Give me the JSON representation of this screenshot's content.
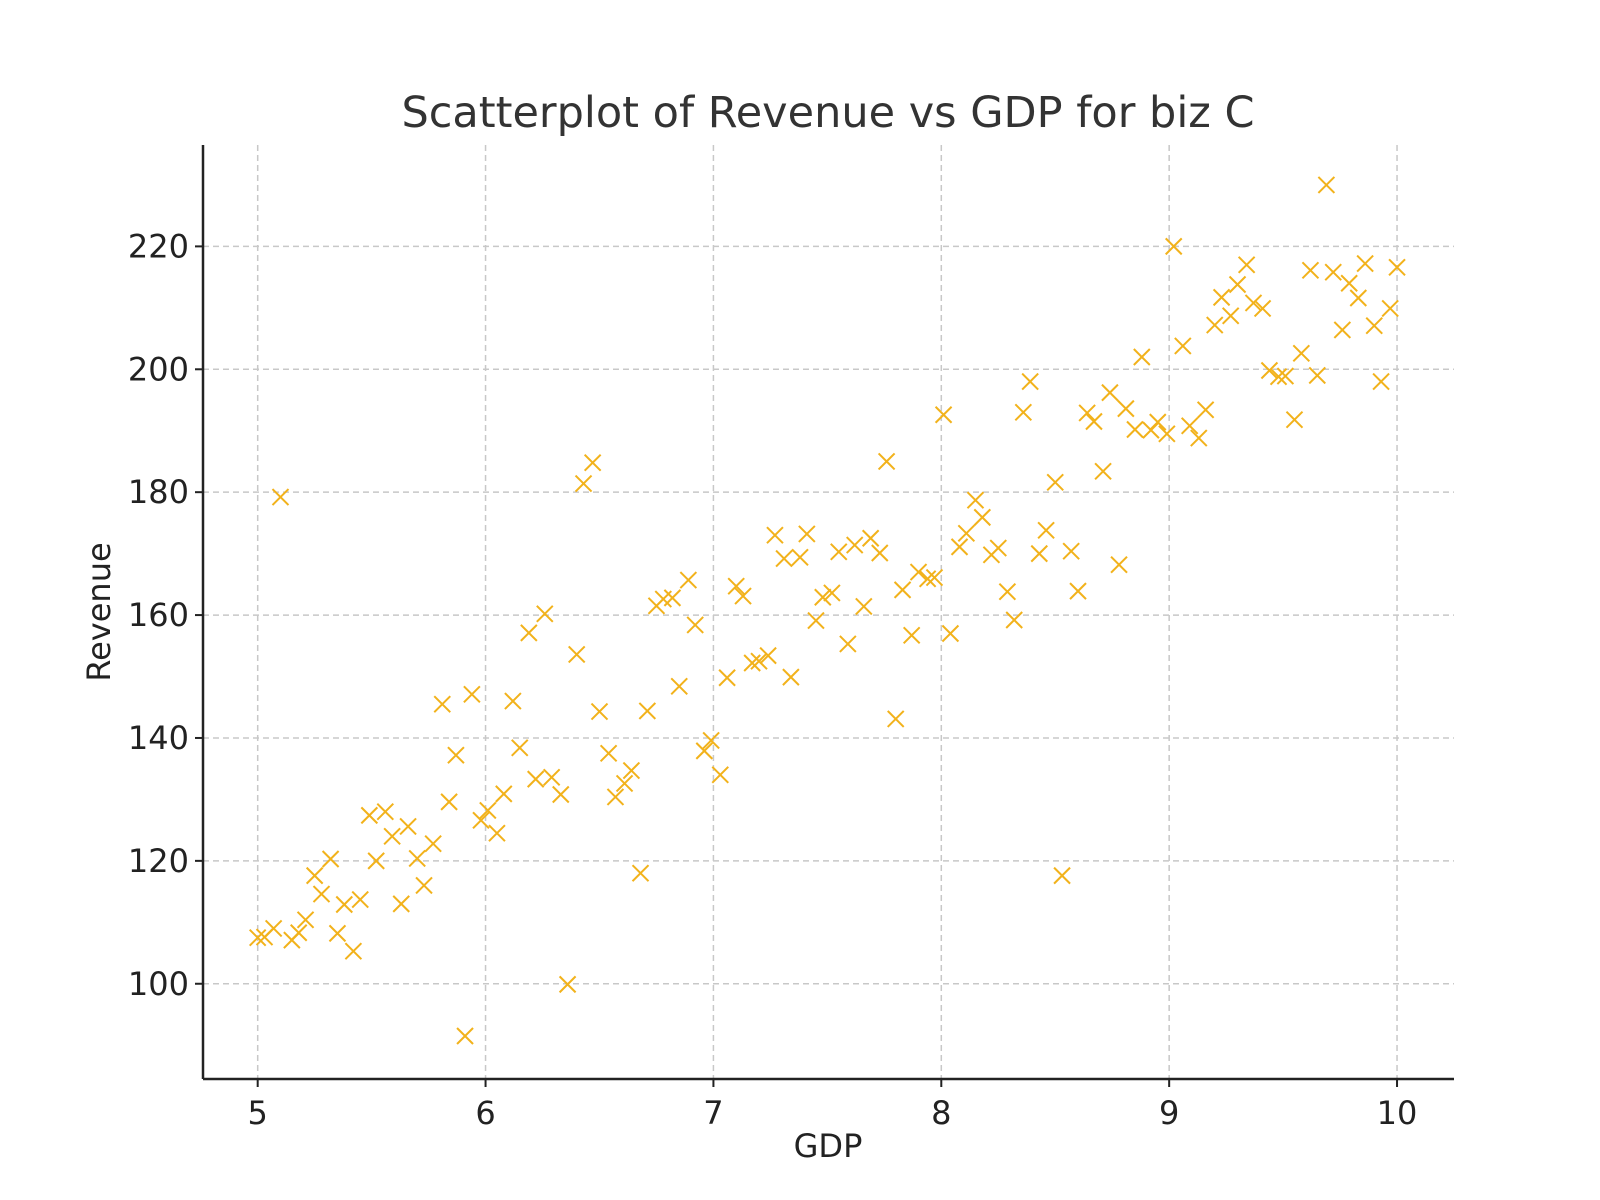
{
  "chart_data": {
    "type": "scatter",
    "title": "Scatterplot of Revenue vs GDP for biz C",
    "xlabel": "GDP",
    "ylabel": "Revenue",
    "xlim": [
      4.76,
      10.25
    ],
    "ylim": [
      84.5,
      236.5
    ],
    "xticks": [
      5,
      6,
      7,
      8,
      9,
      10
    ],
    "yticks": [
      100,
      120,
      140,
      160,
      180,
      200,
      220
    ],
    "grid": true,
    "marker": "x",
    "color": "#f2b21b",
    "series": [
      {
        "points": [
          [
            5.0,
            107.5
          ],
          [
            5.03,
            107.6
          ],
          [
            5.07,
            109.0
          ],
          [
            5.1,
            179.2
          ],
          [
            5.15,
            107.1
          ],
          [
            5.18,
            108.3
          ],
          [
            5.21,
            110.4
          ],
          [
            5.25,
            117.6
          ],
          [
            5.28,
            114.6
          ],
          [
            5.32,
            120.3
          ],
          [
            5.35,
            108.2
          ],
          [
            5.38,
            112.9
          ],
          [
            5.42,
            105.3
          ],
          [
            5.45,
            113.7
          ],
          [
            5.49,
            127.4
          ],
          [
            5.52,
            120.0
          ],
          [
            5.56,
            128.0
          ],
          [
            5.59,
            124.0
          ],
          [
            5.63,
            113.0
          ],
          [
            5.66,
            125.6
          ],
          [
            5.7,
            120.4
          ],
          [
            5.73,
            116.0
          ],
          [
            5.77,
            122.8
          ],
          [
            5.81,
            145.5
          ],
          [
            5.84,
            129.6
          ],
          [
            5.87,
            137.2
          ],
          [
            5.91,
            91.5
          ],
          [
            5.94,
            147.1
          ],
          [
            5.98,
            126.6
          ],
          [
            6.01,
            128.2
          ],
          [
            6.05,
            124.5
          ],
          [
            6.08,
            130.9
          ],
          [
            6.12,
            146.0
          ],
          [
            6.15,
            138.4
          ],
          [
            6.19,
            157.1
          ],
          [
            6.22,
            133.3
          ],
          [
            6.26,
            160.2
          ],
          [
            6.29,
            133.6
          ],
          [
            6.33,
            130.8
          ],
          [
            6.36,
            99.9
          ],
          [
            6.4,
            153.6
          ],
          [
            6.43,
            181.4
          ],
          [
            6.47,
            184.8
          ],
          [
            6.5,
            144.3
          ],
          [
            6.54,
            137.5
          ],
          [
            6.57,
            130.4
          ],
          [
            6.61,
            132.6
          ],
          [
            6.64,
            134.7
          ],
          [
            6.68,
            118.0
          ],
          [
            6.71,
            144.4
          ],
          [
            6.75,
            161.5
          ],
          [
            6.78,
            162.6
          ],
          [
            6.82,
            162.8
          ],
          [
            6.85,
            148.4
          ],
          [
            6.89,
            165.7
          ],
          [
            6.92,
            158.4
          ],
          [
            6.96,
            137.9
          ],
          [
            6.99,
            139.6
          ],
          [
            7.03,
            134.0
          ],
          [
            7.06,
            149.8
          ],
          [
            7.1,
            164.7
          ],
          [
            7.13,
            163.1
          ],
          [
            7.17,
            152.2
          ],
          [
            7.2,
            152.5
          ],
          [
            7.24,
            153.4
          ],
          [
            7.27,
            173.0
          ],
          [
            7.31,
            169.2
          ],
          [
            7.34,
            149.9
          ],
          [
            7.38,
            169.4
          ],
          [
            7.41,
            173.2
          ],
          [
            7.45,
            159.1
          ],
          [
            7.48,
            162.9
          ],
          [
            7.52,
            163.6
          ],
          [
            7.55,
            170.3
          ],
          [
            7.59,
            155.3
          ],
          [
            7.62,
            171.4
          ],
          [
            7.66,
            161.4
          ],
          [
            7.69,
            172.5
          ],
          [
            7.73,
            170.1
          ],
          [
            7.76,
            185.0
          ],
          [
            7.8,
            143.1
          ],
          [
            7.83,
            164.1
          ],
          [
            7.87,
            156.7
          ],
          [
            7.9,
            167.0
          ],
          [
            7.94,
            165.9
          ],
          [
            7.97,
            166.1
          ],
          [
            8.01,
            192.6
          ],
          [
            8.04,
            157.0
          ],
          [
            8.08,
            171.1
          ],
          [
            8.11,
            173.3
          ],
          [
            8.15,
            178.7
          ],
          [
            8.18,
            175.9
          ],
          [
            8.22,
            169.8
          ],
          [
            8.25,
            170.9
          ],
          [
            8.29,
            163.8
          ],
          [
            8.32,
            159.2
          ],
          [
            8.36,
            193.0
          ],
          [
            8.39,
            198.0
          ],
          [
            8.43,
            170.0
          ],
          [
            8.46,
            173.8
          ],
          [
            8.5,
            181.6
          ],
          [
            8.53,
            117.6
          ],
          [
            8.57,
            170.4
          ],
          [
            8.6,
            163.9
          ],
          [
            8.64,
            192.9
          ],
          [
            8.67,
            191.5
          ],
          [
            8.71,
            183.4
          ],
          [
            8.74,
            196.2
          ],
          [
            8.78,
            168.2
          ],
          [
            8.81,
            193.6
          ],
          [
            8.85,
            190.2
          ],
          [
            8.88,
            202.0
          ],
          [
            8.92,
            190.1
          ],
          [
            8.95,
            191.4
          ],
          [
            8.99,
            189.5
          ],
          [
            9.02,
            220.0
          ],
          [
            9.06,
            203.8
          ],
          [
            9.09,
            190.8
          ],
          [
            9.13,
            188.8
          ],
          [
            9.16,
            193.4
          ],
          [
            9.2,
            207.2
          ],
          [
            9.23,
            211.7
          ],
          [
            9.27,
            208.7
          ],
          [
            9.3,
            213.8
          ],
          [
            9.34,
            217.0
          ],
          [
            9.37,
            210.8
          ],
          [
            9.41,
            209.9
          ],
          [
            9.44,
            199.8
          ],
          [
            9.48,
            198.8
          ],
          [
            9.51,
            198.9
          ],
          [
            9.55,
            191.8
          ],
          [
            9.58,
            202.6
          ],
          [
            9.62,
            216.1
          ],
          [
            9.65,
            199.0
          ],
          [
            9.69,
            230.0
          ],
          [
            9.72,
            215.8
          ],
          [
            9.76,
            206.4
          ],
          [
            9.79,
            214.0
          ],
          [
            9.83,
            211.6
          ],
          [
            9.86,
            217.2
          ],
          [
            9.9,
            207.1
          ],
          [
            9.93,
            198.0
          ],
          [
            9.97,
            209.9
          ],
          [
            10.0,
            216.6
          ]
        ]
      }
    ]
  }
}
